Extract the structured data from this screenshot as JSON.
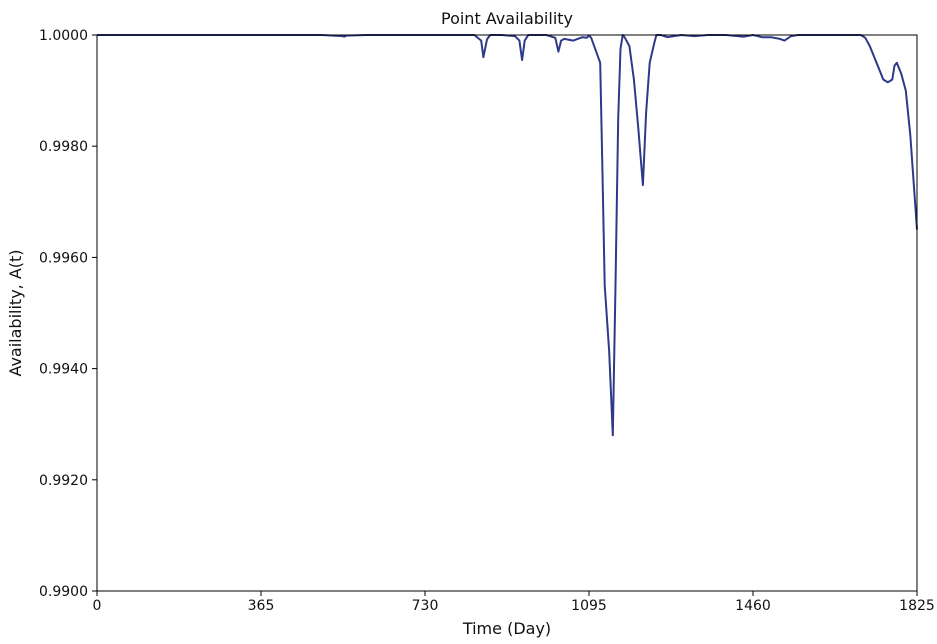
{
  "chart_data": {
    "type": "line",
    "title": "Point Availability",
    "xlabel": "Time (Day)",
    "ylabel": "Availability, A(t)",
    "xlim": [
      0,
      1825
    ],
    "ylim": [
      0.99,
      1.0
    ],
    "x_ticks": [
      0,
      365,
      730,
      1095,
      1460,
      1825
    ],
    "y_ticks": [
      0.99,
      0.992,
      0.994,
      0.996,
      0.998,
      1.0
    ],
    "y_tick_labels": [
      "0.9900",
      "0.9920",
      "0.9940",
      "0.9960",
      "0.9980",
      "1.0000"
    ],
    "grid": false,
    "legend": "none",
    "line_color": "#2e3a87",
    "series": [
      {
        "x": [
          0,
          100,
          200,
          300,
          400,
          500,
          546,
          550,
          555,
          600,
          700,
          800,
          840,
          855,
          860,
          868,
          875,
          900,
          930,
          940,
          946,
          952,
          960,
          1000,
          1020,
          1027,
          1033,
          1040,
          1060,
          1080,
          1090,
          1095,
          1100,
          1120,
          1125,
          1130,
          1140,
          1148,
          1154,
          1160,
          1165,
          1170,
          1175,
          1185,
          1195,
          1205,
          1215,
          1222,
          1230,
          1240,
          1245,
          1255,
          1270,
          1300,
          1330,
          1360,
          1400,
          1440,
          1460,
          1480,
          1500,
          1520,
          1530,
          1545,
          1560,
          1600,
          1640,
          1700,
          1710,
          1720,
          1740,
          1750,
          1760,
          1770,
          1775,
          1780,
          1790,
          1800,
          1810,
          1825
        ],
        "y": [
          1.0,
          1.0,
          1.0,
          1.0,
          1.0,
          1.0,
          0.99998,
          0.99997,
          0.99999,
          1.0,
          1.0,
          1.0,
          1.0,
          0.9999,
          0.9996,
          0.99992,
          1.0,
          1.0,
          0.99998,
          0.9999,
          0.99955,
          0.9999,
          1.0,
          1.0,
          0.99995,
          0.9997,
          0.9999,
          0.99993,
          0.9999,
          0.99996,
          0.99995,
          0.99999,
          0.99995,
          0.9995,
          0.9975,
          0.9955,
          0.9943,
          0.9928,
          0.9955,
          0.9985,
          0.99975,
          1.0,
          0.99995,
          0.9998,
          0.9992,
          0.9983,
          0.9973,
          0.9986,
          0.9995,
          0.99985,
          1.0,
          1.0,
          0.99996,
          1.0,
          0.99998,
          1.0,
          1.0,
          0.99997,
          1.0,
          0.99996,
          0.99996,
          0.99993,
          0.9999,
          0.99998,
          1.0,
          1.0,
          1.0,
          1.0,
          0.99995,
          0.9998,
          0.9994,
          0.9992,
          0.99915,
          0.9992,
          0.99945,
          0.9995,
          0.9993,
          0.999,
          0.9982,
          0.9965
        ]
      }
    ]
  }
}
